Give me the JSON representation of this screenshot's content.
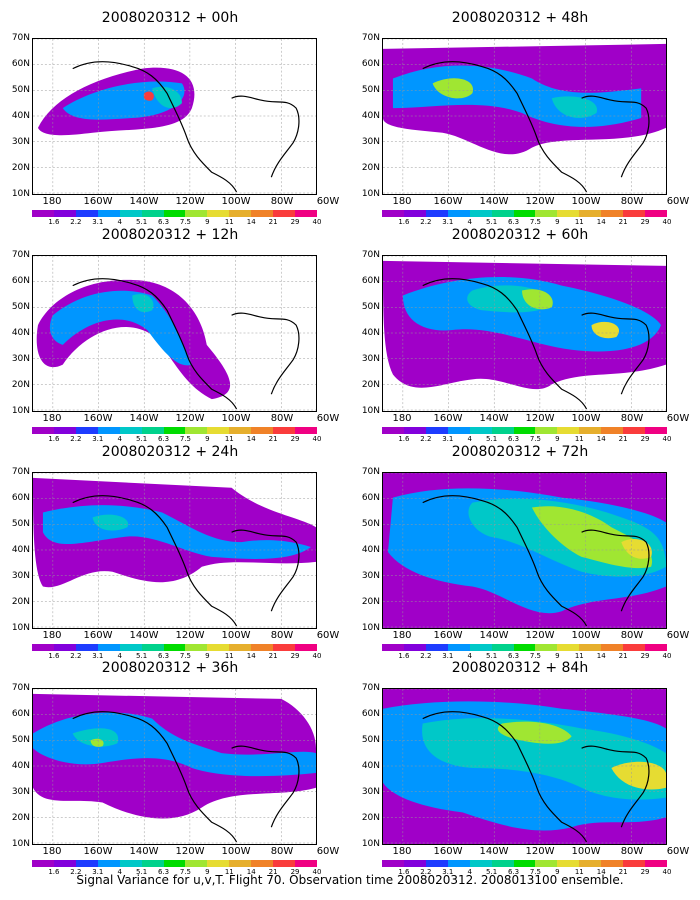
{
  "panels": [
    {
      "title": "2008020312 + 00h",
      "icon": "signal-variance-map-icon"
    },
    {
      "title": "2008020312 + 48h",
      "icon": "signal-variance-map-icon"
    },
    {
      "title": "2008020312 + 12h",
      "icon": "signal-variance-map-icon"
    },
    {
      "title": "2008020312 + 60h",
      "icon": "signal-variance-map-icon"
    },
    {
      "title": "2008020312 + 24h",
      "icon": "signal-variance-map-icon"
    },
    {
      "title": "2008020312 + 72h",
      "icon": "signal-variance-map-icon"
    },
    {
      "title": "2008020312 + 36h",
      "icon": "signal-variance-map-icon"
    },
    {
      "title": "2008020312 + 84h",
      "icon": "signal-variance-map-icon"
    }
  ],
  "lat_labels": [
    "70N",
    "60N",
    "50N",
    "40N",
    "30N",
    "20N",
    "10N"
  ],
  "lon_labels": [
    "180",
    "160W",
    "140W",
    "120W",
    "100W",
    "80W",
    "60W"
  ],
  "colorbar": {
    "labels": [
      "1.6",
      "2.2",
      "3.1",
      "4",
      "5.1",
      "6.3",
      "7.5",
      "9",
      "11",
      "14",
      "21",
      "29",
      "40"
    ],
    "colors": [
      "#a000c8",
      "#8200dc",
      "#1e3cff",
      "#0096ff",
      "#00c8c8",
      "#00d28c",
      "#00dc00",
      "#a0e632",
      "#e6dc32",
      "#e6af2d",
      "#f08228",
      "#fa3c3c",
      "#f00082"
    ]
  },
  "caption": "Signal Variance for u,v,T. Flight 70. Observation time 2008020312. 2008013100 ensemble."
}
